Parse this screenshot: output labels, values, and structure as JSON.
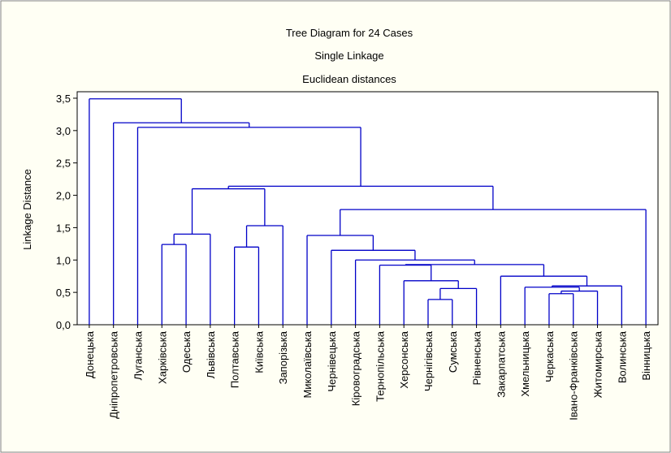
{
  "chart_data": {
    "type": "dendrogram",
    "title": "Tree Diagram for 24 Cases",
    "subtitle": "Single Linkage",
    "subtitle2": "Euclidean distances",
    "ylabel": "Linkage Distance",
    "color": "#0000c8",
    "categories": [
      "Донецька",
      "Дніпропетровська",
      "Луганська",
      "Харківська",
      "Одеська",
      "Львівська",
      "Полтавська",
      "Київська",
      "Запорізька",
      "Миколаївська",
      "Чернівецька",
      "Кіровоградська",
      "Тернопільська",
      "Херсонська",
      "Чернігівська",
      "Сумська",
      "Рівненська",
      "Закарпатська",
      "Хмельницька",
      "Черкаська",
      "Івано-Франківська",
      "Житомирська",
      "Волинська",
      "Вінницька"
    ],
    "merges": [
      {
        "left": 14,
        "right": 15,
        "height": 0.39
      },
      {
        "left": 24,
        "right": 16,
        "height": 0.56
      },
      {
        "left": 13,
        "right": 25,
        "height": 0.68
      },
      {
        "left": 12,
        "right": 26,
        "height": 0.92
      },
      {
        "left": 19,
        "right": 20,
        "height": 0.48
      },
      {
        "left": 28,
        "right": 21,
        "height": 0.52
      },
      {
        "left": 18,
        "right": 29,
        "height": 0.58
      },
      {
        "left": 30,
        "right": 22,
        "height": 0.6
      },
      {
        "left": 17,
        "right": 31,
        "height": 0.75
      },
      {
        "left": 27,
        "right": 32,
        "height": 0.93
      },
      {
        "left": 11,
        "right": 33,
        "height": 1.0
      },
      {
        "left": 10,
        "right": 34,
        "height": 1.15
      },
      {
        "left": 9,
        "right": 35,
        "height": 1.38
      },
      {
        "left": 36,
        "right": 23,
        "height": 1.78
      },
      {
        "left": 3,
        "right": 4,
        "height": 1.24
      },
      {
        "left": 38,
        "right": 5,
        "height": 1.4
      },
      {
        "left": 6,
        "right": 7,
        "height": 1.2
      },
      {
        "left": 40,
        "right": 8,
        "height": 1.53
      },
      {
        "left": 39,
        "right": 41,
        "height": 2.1
      },
      {
        "left": 42,
        "right": 37,
        "height": 2.14
      },
      {
        "left": 2,
        "right": 43,
        "height": 3.05
      },
      {
        "left": 1,
        "right": 44,
        "height": 3.12
      },
      {
        "left": 0,
        "right": 45,
        "height": 3.49
      }
    ],
    "ylim": [
      0,
      3.6
    ],
    "yticks": [
      {
        "value": 0,
        "label": "0,0"
      },
      {
        "value": 0.5,
        "label": "0,5"
      },
      {
        "value": 1,
        "label": "1,0"
      },
      {
        "value": 1.5,
        "label": "1,5"
      },
      {
        "value": 2,
        "label": "2,0"
      },
      {
        "value": 2.5,
        "label": "2,5"
      },
      {
        "value": 3,
        "label": "3,0"
      },
      {
        "value": 3.5,
        "label": "3,5"
      }
    ]
  }
}
